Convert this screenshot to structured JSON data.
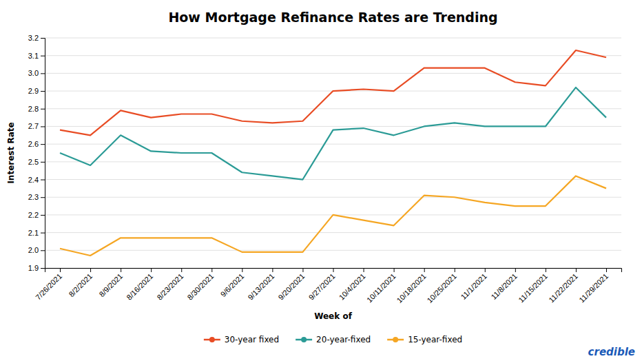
{
  "chart_data": {
    "type": "line",
    "title": "How Mortgage Refinance Rates are Trending",
    "x_label": "Week of",
    "y_label": "Interest Rate",
    "categories": [
      "7/26/2021",
      "8/2/2021",
      "8/9/2021",
      "8/16/2021",
      "8/23/2021",
      "8/30/2021",
      "9/6/2021",
      "9/13/2021",
      "9/20/2021",
      "9/27/2021",
      "10/4/2021",
      "10/11/2021",
      "10/18/2021",
      "10/25/2021",
      "11/1/2021",
      "11/8/2021",
      "11/15/2021",
      "11/22/2021",
      "11/29/2021"
    ],
    "series": [
      {
        "name": "30-year fixed",
        "color": "#E84C24",
        "values": [
          2.68,
          2.65,
          2.79,
          2.75,
          2.77,
          2.77,
          2.73,
          2.72,
          2.73,
          2.9,
          2.91,
          2.9,
          3.03,
          3.03,
          3.03,
          2.95,
          2.93,
          3.13,
          3.09
        ]
      },
      {
        "name": "20-year-fixed",
        "color": "#2B9B96",
        "values": [
          2.55,
          2.48,
          2.65,
          2.56,
          2.55,
          2.55,
          2.44,
          2.42,
          2.4,
          2.68,
          2.69,
          2.65,
          2.7,
          2.72,
          2.7,
          2.7,
          2.7,
          2.92,
          2.75
        ]
      },
      {
        "name": "15-year-fixed",
        "color": "#F5A623",
        "values": [
          2.01,
          1.97,
          2.07,
          2.07,
          2.07,
          2.07,
          1.99,
          1.99,
          1.99,
          2.2,
          2.17,
          2.14,
          2.31,
          2.3,
          2.27,
          2.25,
          2.25,
          2.42,
          2.35
        ]
      }
    ],
    "ylim": [
      1.9,
      3.2
    ],
    "yticks": [
      1.9,
      {
        "value": 2,
        "label": "2.0"
      },
      2.1,
      2.2,
      2.3,
      2.4,
      2.5,
      2.6,
      2.7,
      2.8,
      2.9,
      {
        "value": 3,
        "label": "3.0"
      },
      3.1,
      3.2
    ],
    "grid": true,
    "legend": "bottom",
    "annotations": [
      {
        "text": "credible",
        "color": "#1A5AB8"
      }
    ]
  }
}
